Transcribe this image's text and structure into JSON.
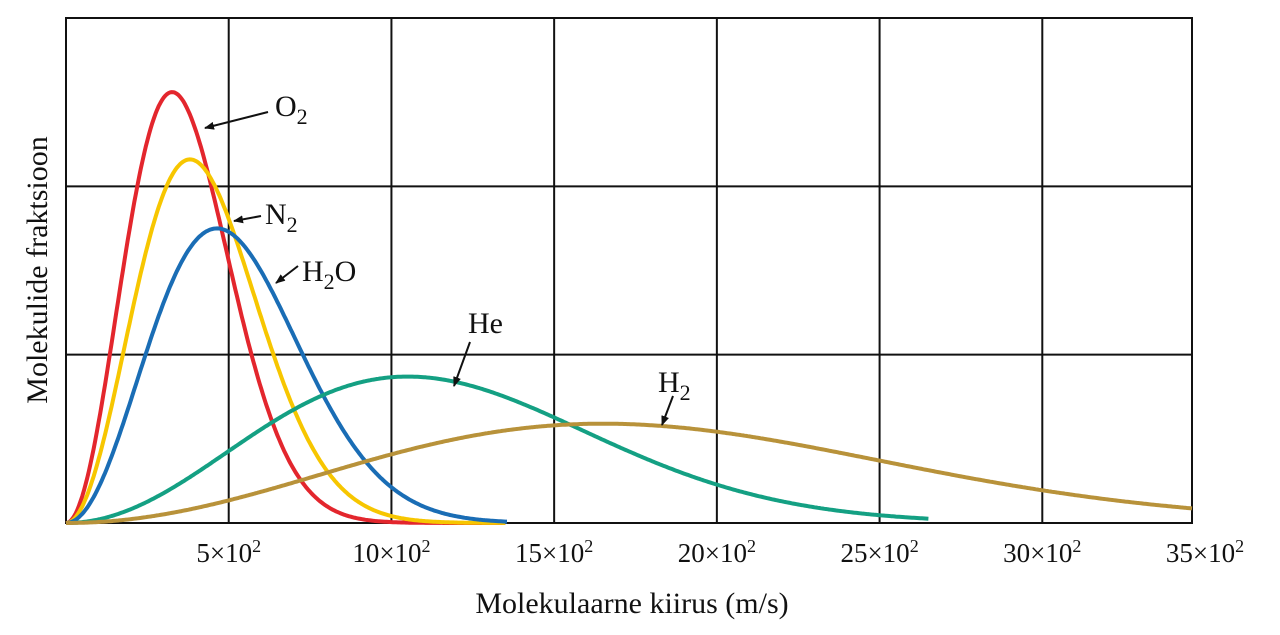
{
  "chart_data": {
    "type": "line",
    "title": "",
    "xlabel": "Molekulaarne kiirus (m/s)",
    "ylabel": "Molekulide fraktsioon",
    "xlim": [
      0,
      3460
    ],
    "ylim": [
      0,
      3
    ],
    "grid": true,
    "x_ticks": [
      500,
      1000,
      1500,
      2000,
      2500,
      3000,
      3500
    ],
    "x_tick_labels": [
      {
        "base": "5×10",
        "exp": "2"
      },
      {
        "base": "10×10",
        "exp": "2"
      },
      {
        "base": "15×10",
        "exp": "2"
      },
      {
        "base": "20×10",
        "exp": "2"
      },
      {
        "base": "25×10",
        "exp": "2"
      },
      {
        "base": "30×10",
        "exp": "2"
      },
      {
        "base": "35×10",
        "exp": "2"
      }
    ],
    "y_gridlines": [
      1,
      2
    ],
    "legend": "inline labels with arrows",
    "series": [
      {
        "name": "O2",
        "label": {
          "main": "O",
          "sub": "2",
          "tail": ""
        },
        "color": "#e3262d",
        "most_probable_speed": 326,
        "peak_value": 2.56,
        "max_speed": 1350
      },
      {
        "name": "N2",
        "label": {
          "main": "N",
          "sub": "2",
          "tail": ""
        },
        "color": "#f7c600",
        "most_probable_speed": 381,
        "peak_value": 2.16,
        "max_speed": 1350
      },
      {
        "name": "H2O",
        "label": {
          "main": "H",
          "sub": "2",
          "tail": "O"
        },
        "color": "#1a6db5",
        "most_probable_speed": 464,
        "peak_value": 1.75,
        "max_speed": 1355
      },
      {
        "name": "He",
        "label": {
          "main": "He",
          "sub": "",
          "tail": ""
        },
        "color": "#14a083",
        "most_probable_speed": 1050,
        "peak_value": 0.87,
        "max_speed": 2650
      },
      {
        "name": "H2",
        "label": {
          "main": "H",
          "sub": "2",
          "tail": ""
        },
        "color": "#b8923a",
        "most_probable_speed": 1650,
        "peak_value": 0.59,
        "max_speed": 3460
      }
    ]
  }
}
